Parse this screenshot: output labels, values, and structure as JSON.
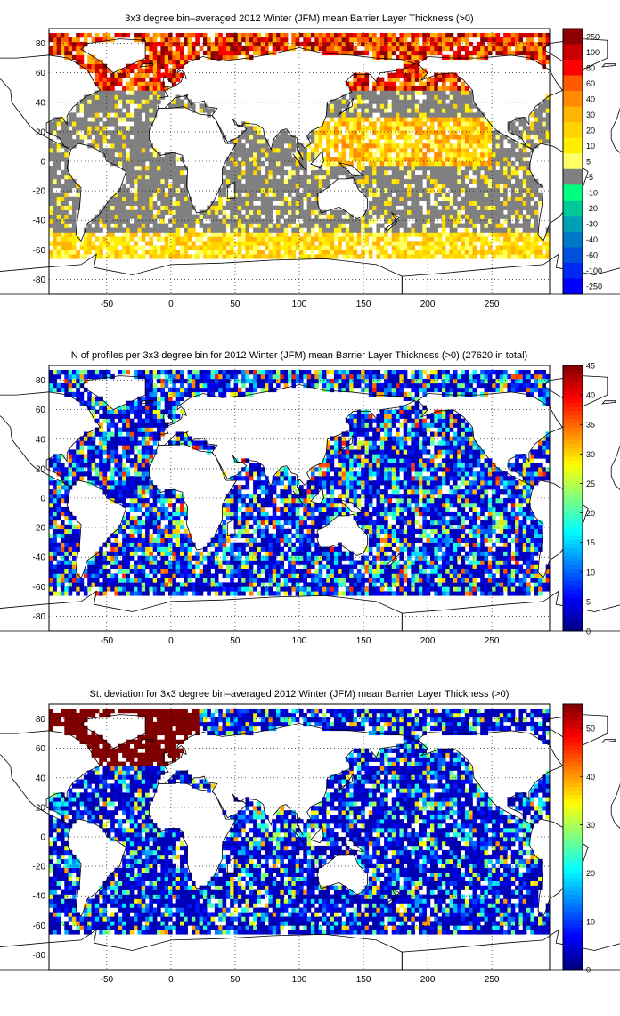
{
  "chart_data": [
    {
      "type": "heatmap",
      "title": "3x3 degree bin–averaged 2012 Winter (JFM) mean Barrier Layer Thickness (>0)",
      "x_ticks": [
        -50,
        0,
        50,
        100,
        150,
        200,
        250
      ],
      "y_ticks": [
        80,
        60,
        40,
        20,
        0,
        -20,
        -40,
        -60,
        -80
      ],
      "xlim": [
        -95,
        295
      ],
      "ylim": [
        -90,
        90
      ],
      "colorbar": {
        "kind": "discrete",
        "labels": [
          "250",
          "100",
          "80",
          "60",
          "40",
          "30",
          "20",
          "10",
          "5",
          "-5",
          "-10",
          "-20",
          "-30",
          "-40",
          "-60",
          "-100",
          "-250"
        ],
        "colors": [
          "#8b0000",
          "#c80000",
          "#ff0000",
          "#ff5a00",
          "#ff8c00",
          "#ffb400",
          "#ffd200",
          "#ffee00",
          "#ffff66",
          "#808080",
          "#00ff7f",
          "#00c896",
          "#00a0b4",
          "#0078c8",
          "#0050dc",
          "#0028f0",
          "#0000ff"
        ]
      },
      "grid": true
    },
    {
      "type": "heatmap",
      "title": "N of profiles per 3x3 degree bin for 2012 Winter (JFM) mean Barrier Layer Thickness (>0) (27620 in total)",
      "x_ticks": [
        -50,
        0,
        50,
        100,
        150,
        200,
        250
      ],
      "y_ticks": [
        80,
        60,
        40,
        20,
        0,
        -20,
        -40,
        -60,
        -80
      ],
      "xlim": [
        -95,
        295
      ],
      "ylim": [
        -90,
        90
      ],
      "colorbar": {
        "kind": "continuous",
        "ticks": [
          0,
          5,
          10,
          15,
          20,
          25,
          30,
          35,
          40,
          45
        ],
        "range": [
          0,
          45
        ],
        "colormap": "jet"
      },
      "grid": true
    },
    {
      "type": "heatmap",
      "title": "St. deviation for 3x3 degree bin–averaged 2012 Winter (JFM) mean Barrier Layer Thickness (>0)",
      "x_ticks": [
        -50,
        0,
        50,
        100,
        150,
        200,
        250
      ],
      "y_ticks": [
        80,
        60,
        40,
        20,
        0,
        -20,
        -40,
        -60,
        -80
      ],
      "xlim": [
        -95,
        295
      ],
      "ylim": [
        -90,
        90
      ],
      "colorbar": {
        "kind": "continuous",
        "ticks": [
          0,
          10,
          20,
          30,
          40,
          50
        ],
        "range": [
          0,
          55
        ],
        "colormap": "jet"
      },
      "grid": true
    }
  ]
}
